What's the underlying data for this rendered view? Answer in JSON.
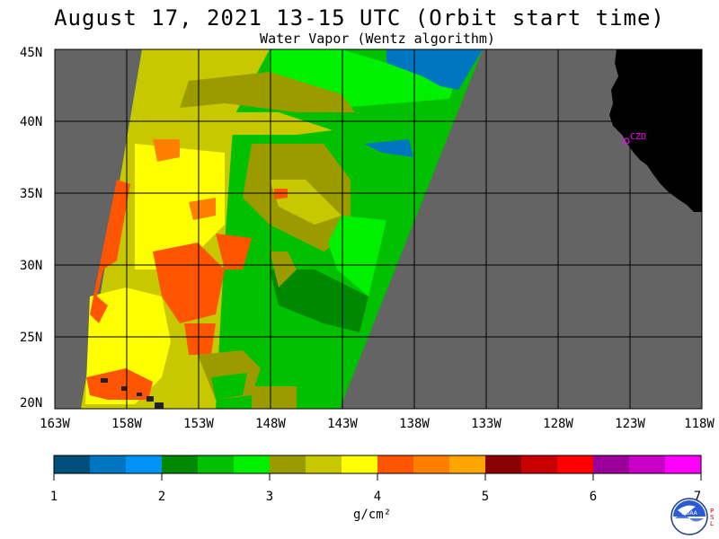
{
  "header": {
    "title": "August 17, 2021  13-15 UTC  (Orbit start time)",
    "subtitle": "Water Vapor (Wentz algorithm)"
  },
  "map": {
    "lat_labels": [
      "45N",
      "40N",
      "35N",
      "30N",
      "25N",
      "20N"
    ],
    "lon_labels": [
      "163W",
      "158W",
      "153W",
      "148W",
      "143W",
      "138W",
      "133W",
      "128W",
      "123W",
      "118W"
    ],
    "station_label": "CZD",
    "land_color": "#000000",
    "nodata_color": "#646464",
    "grid_color": "#000000"
  },
  "colorbar": {
    "ticks": [
      "1",
      "2",
      "3",
      "4",
      "5",
      "6",
      "7"
    ],
    "units": "g/cm²",
    "colors": [
      "#004f7a",
      "#0076c0",
      "#0093f5",
      "#008800",
      "#00c000",
      "#00f000",
      "#9b9b00",
      "#c8c800",
      "#ffff00",
      "#ff5500",
      "#ff7f00",
      "#ffa500",
      "#8b0000",
      "#c80000",
      "#ff0000",
      "#9b009b",
      "#c800c8",
      "#ff00ff"
    ]
  },
  "logo": {
    "name": "NOAA",
    "side_text": "PSL"
  }
}
